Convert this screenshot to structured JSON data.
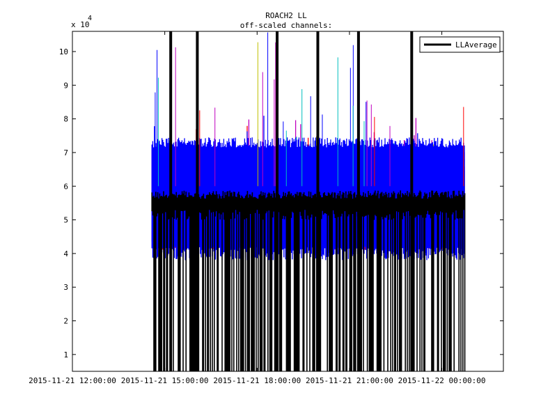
{
  "chart_data": {
    "type": "line",
    "title": "ROACH2 LL",
    "subtitle": "off-scaled channels:",
    "y_multiplier_base": "x 10",
    "y_multiplier_exp": "4",
    "xlabel": "",
    "ylabel": "",
    "xlim": [
      "2015-11-21 12:00:00",
      "2015-11-22 02:00:00"
    ],
    "ylim": [
      5000,
      106000
    ],
    "x_ticks": [
      "2015-11-21 12:00:00",
      "2015-11-21 15:00:00",
      "2015-11-21 18:00:00",
      "2015-11-21 21:00:00",
      "2015-11-22 00:00:00"
    ],
    "y_ticks": [
      1,
      2,
      3,
      4,
      5,
      6,
      7,
      8,
      9,
      10
    ],
    "data_start": "2015-11-21 14:35:00",
    "data_end": "2015-11-22 00:45:00",
    "grid": false,
    "legend_position": "top-right",
    "legend": [
      {
        "name": "LLAverage",
        "color": "#000000"
      }
    ],
    "series": [
      {
        "name": "LLAverage",
        "color": "#000000",
        "level": 57000,
        "floor": 5000
      }
    ],
    "channel_colors": [
      "#0000ff",
      "#00bfbf",
      "#bf00bf",
      "#ff0000",
      "#008000",
      "#bfbf00",
      "#0000ff",
      "#00bfbf"
    ],
    "channel_bands": [
      {
        "color": "#bfbf00",
        "upper": 62000,
        "lower": 46000
      },
      {
        "color": "#008000",
        "upper": 64000,
        "lower": 45000
      },
      {
        "color": "#ff0000",
        "upper": 66000,
        "lower": 43000
      },
      {
        "color": "#00bfbf",
        "upper": 68000,
        "lower": 48000
      },
      {
        "color": "#bf00bf",
        "upper": 70000,
        "lower": 50000
      },
      {
        "color": "#0000ff",
        "upper": 73000,
        "lower": 40000
      }
    ]
  }
}
